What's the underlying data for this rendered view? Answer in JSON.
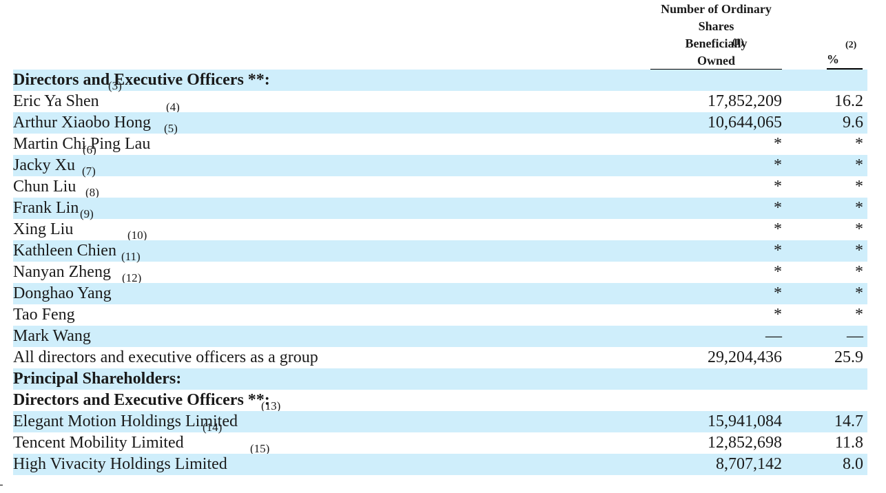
{
  "header": {
    "shares_line1": "Number of Ordinary",
    "shares_line2": "Shares",
    "shares_line3": "Beneficially",
    "shares_line4": "Owned",
    "shares_footnote": "(1)",
    "pct_label": "%",
    "pct_footnote": "(2)"
  },
  "rows": [
    {
      "label": "Directors and Executive Officers **:",
      "footnote": "(3)",
      "shares": "",
      "pct": ""
    },
    {
      "label": "Eric Ya Shen",
      "footnote": "(4)",
      "shares": "17,852,209",
      "pct": "16.2"
    },
    {
      "label": "Arthur Xiaobo Hong",
      "footnote": "(5)",
      "shares": "10,644,065",
      "pct": "9.6"
    },
    {
      "label": "Martin Chi Ping Lau",
      "footnote": "(6)",
      "shares": "*",
      "pct": "*"
    },
    {
      "label": "Jacky Xu",
      "footnote": "(7)",
      "shares": "*",
      "pct": "*"
    },
    {
      "label": "Chun Liu",
      "footnote": "(8)",
      "shares": "*",
      "pct": "*"
    },
    {
      "label": "Frank Lin",
      "footnote": "(9)",
      "shares": "*",
      "pct": "*"
    },
    {
      "label": "Xing Liu",
      "footnote": "(10)",
      "shares": "*",
      "pct": "*"
    },
    {
      "label": "Kathleen Chien",
      "footnote": "(11)",
      "shares": "*",
      "pct": "*"
    },
    {
      "label": "Nanyan Zheng",
      "footnote": "(12)",
      "shares": "*",
      "pct": "*"
    },
    {
      "label": "Donghao Yang",
      "footnote": "",
      "shares": "*",
      "pct": "*"
    },
    {
      "label": "Tao Feng",
      "footnote": "",
      "shares": "*",
      "pct": "*"
    },
    {
      "label": "Mark Wang",
      "footnote": "",
      "shares": "—",
      "pct": "—"
    },
    {
      "label": "All directors and executive officers as a group",
      "footnote": "",
      "shares": "29,204,436",
      "pct": "25.9"
    },
    {
      "label": "Principal Shareholders:",
      "footnote": "",
      "shares": "",
      "pct": ""
    },
    {
      "label": "Directors and Executive Officers **:",
      "footnote": "(13)",
      "shares": "",
      "pct": ""
    },
    {
      "label": "Elegant Motion Holdings Limited",
      "footnote": "(14)",
      "shares": "15,941,084",
      "pct": "14.7"
    },
    {
      "label": "Tencent Mobility Limited",
      "footnote": "(15)",
      "shares": "12,852,698",
      "pct": "11.8"
    },
    {
      "label": "High Vivacity Holdings Limited",
      "footnote": "",
      "shares": "8,707,142",
      "pct": "8.0"
    }
  ]
}
